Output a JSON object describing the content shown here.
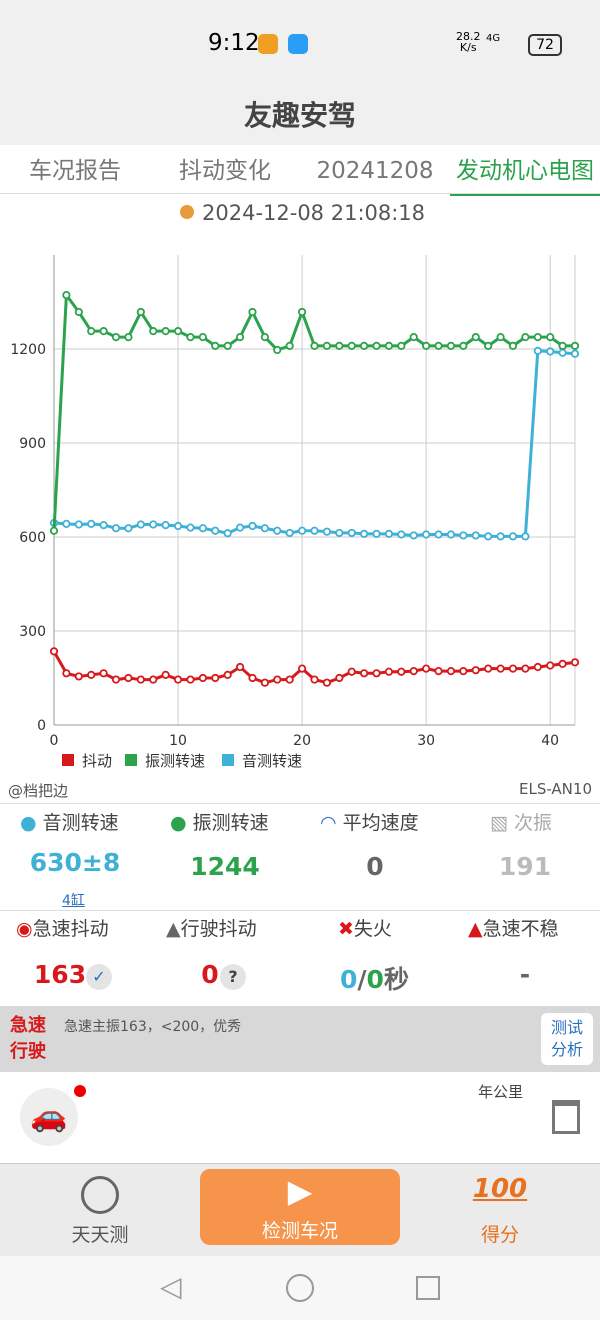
{
  "status": {
    "time": "9:12",
    "speed": "28.2",
    "speed_unit": "K/s",
    "net": "4G",
    "battery": "72"
  },
  "header": {
    "title": "友趣安驾"
  },
  "tabs": [
    "车况报告",
    "抖动变化",
    "20241208",
    "发动机心电图"
  ],
  "timestamp": "2024-12-08 21:08:18",
  "chart_data": {
    "type": "line",
    "x": [
      0,
      1,
      2,
      3,
      4,
      5,
      6,
      7,
      8,
      9,
      10,
      11,
      12,
      13,
      14,
      15,
      16,
      17,
      18,
      19,
      20,
      21,
      22,
      23,
      24,
      25,
      26,
      27,
      28,
      29,
      30,
      31,
      32,
      33,
      34,
      35,
      36,
      37,
      38,
      39,
      40,
      41,
      42
    ],
    "series": [
      {
        "name": "抖动",
        "color": "#d7191c",
        "values": [
          235,
          165,
          155,
          160,
          165,
          145,
          150,
          145,
          145,
          160,
          145,
          145,
          150,
          150,
          160,
          185,
          150,
          135,
          145,
          145,
          180,
          145,
          135,
          150,
          170,
          165,
          165,
          170,
          170,
          172,
          180,
          172,
          172,
          172,
          175,
          180,
          180,
          180,
          180,
          185,
          190,
          195,
          200
        ]
      },
      {
        "name": "振测转速",
        "color": "#2ca24c",
        "values": [
          620,
          1372,
          1318,
          1257,
          1257,
          1238,
          1238,
          1318,
          1257,
          1257,
          1257,
          1238,
          1238,
          1210,
          1210,
          1238,
          1318,
          1238,
          1197,
          1210,
          1318,
          1210,
          1210,
          1210,
          1210,
          1210,
          1210,
          1210,
          1210,
          1238,
          1210,
          1210,
          1210,
          1210,
          1238,
          1210,
          1238,
          1210,
          1238,
          1238,
          1238,
          1210,
          1210
        ]
      },
      {
        "name": "音测转速",
        "color": "#3fb0d6",
        "values": [
          645,
          642,
          640,
          642,
          638,
          628,
          628,
          640,
          640,
          638,
          635,
          630,
          628,
          620,
          612,
          630,
          635,
          628,
          620,
          613,
          620,
          620,
          617,
          613,
          613,
          610,
          610,
          610,
          608,
          605,
          608,
          608,
          608,
          605,
          605,
          602,
          602,
          602,
          602,
          1194,
          1192,
          1188,
          1185
        ]
      }
    ],
    "xlim": [
      0,
      42
    ],
    "ylim": [
      0,
      1500
    ],
    "xticks": [
      0,
      10,
      20,
      30,
      40
    ],
    "yticks": [
      0,
      300,
      600,
      900,
      1200
    ],
    "grid": true
  },
  "source": "@档把边",
  "device": "ELS-AN10",
  "stats": [
    {
      "label": "音测转速",
      "value": "630±8",
      "sub": "4缸"
    },
    {
      "label": "振测转速",
      "value": "1244"
    },
    {
      "label": "平均速度",
      "value": "0"
    },
    {
      "label": "次振",
      "value": "191"
    },
    {
      "label": "急速抖动",
      "value": "163"
    },
    {
      "label": "行驶抖动",
      "value": "0",
      "badge": "?"
    },
    {
      "label": "失火",
      "a": "0",
      "sep": "/",
      "b": "0",
      "unit": "秒"
    },
    {
      "label": "急速不稳",
      "value": "-"
    }
  ],
  "banner": {
    "mode1": "急速",
    "mode2": "行驶",
    "text": "急速主振163，<200，优秀",
    "button1": "测试",
    "button2": "分析"
  },
  "trip": {
    "unit": "年公里"
  },
  "nav": [
    {
      "label": "天天测"
    },
    {
      "label": "检测车况"
    },
    {
      "label": "得分",
      "icon": "100"
    }
  ]
}
